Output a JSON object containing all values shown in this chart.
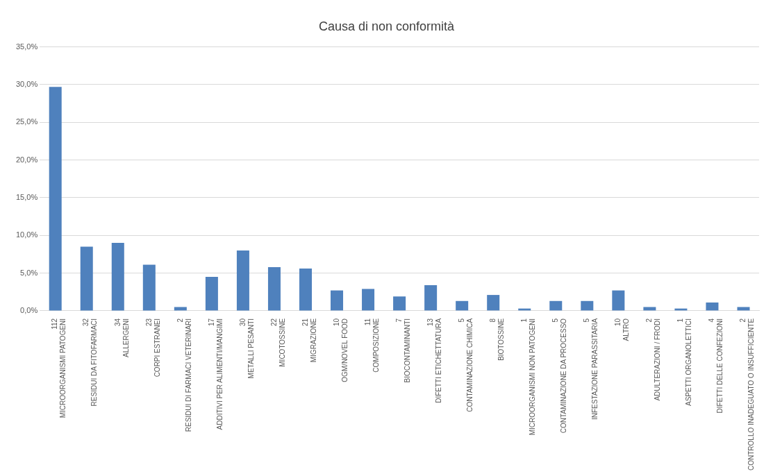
{
  "chart_data": {
    "type": "bar",
    "title": "Causa di non conformità",
    "categories": [
      "112\nMICROORGANISMI PATOGENI",
      "32\nRESIDUI DA FITOFARMACI",
      "34\nALLERGENI",
      "23\nCORPI ESTRANEI",
      "2\nRESIDUI DI FARMACI VETERINARI",
      "17\nADDITIVI PER ALIMENTI/MANGIMI",
      "30\nMETALLI PESANTI",
      "22\nMICOTOSSINE",
      "21\nMIGRAZIONE",
      "10\nOGM/NOVEL FOOD",
      "11\nCOMPOSIZIONE",
      "7\nBIOCONTAMINANTI",
      "13\nDIFETTI ETICHETTATURA",
      "5\nCONTAMINAZIONE CHIMICA",
      "8\nBIOTOSSINE",
      "1\nMICROORGANISMI NON PATOGENI",
      "5\nCONTAMINAZIONE DA PROCESSO",
      "5\nINFESTAZIONE PARASSITARIA",
      "10\nALTRO",
      "2\nADULTERAZIONI / FRODI",
      "1\nASPETTI ORGANOLETTICI",
      "4\nDIFETTI DELLE CONFEZIONI",
      "2\nCONTROLLO INADEGUATO O INSUFFICIENTE"
    ],
    "values": [
      29.7,
      8.5,
      9.0,
      6.1,
      0.5,
      4.5,
      8.0,
      5.8,
      5.6,
      2.7,
      2.9,
      1.9,
      3.4,
      1.3,
      2.1,
      0.3,
      1.3,
      1.3,
      2.7,
      0.5,
      0.3,
      1.1,
      0.5
    ],
    "color": "#4f81bd",
    "ylim": [
      0,
      35
    ],
    "yticks": [
      {
        "value": 0,
        "label": "0,0%"
      },
      {
        "value": 5,
        "label": "5,0%"
      },
      {
        "value": 10,
        "label": "10,0%"
      },
      {
        "value": 15,
        "label": "15,0%"
      },
      {
        "value": 20,
        "label": "20,0%"
      },
      {
        "value": 25,
        "label": "25,0%"
      },
      {
        "value": 30,
        "label": "30,0%"
      },
      {
        "value": 35,
        "label": "35,0%"
      }
    ],
    "grid": "y",
    "legend": false
  }
}
